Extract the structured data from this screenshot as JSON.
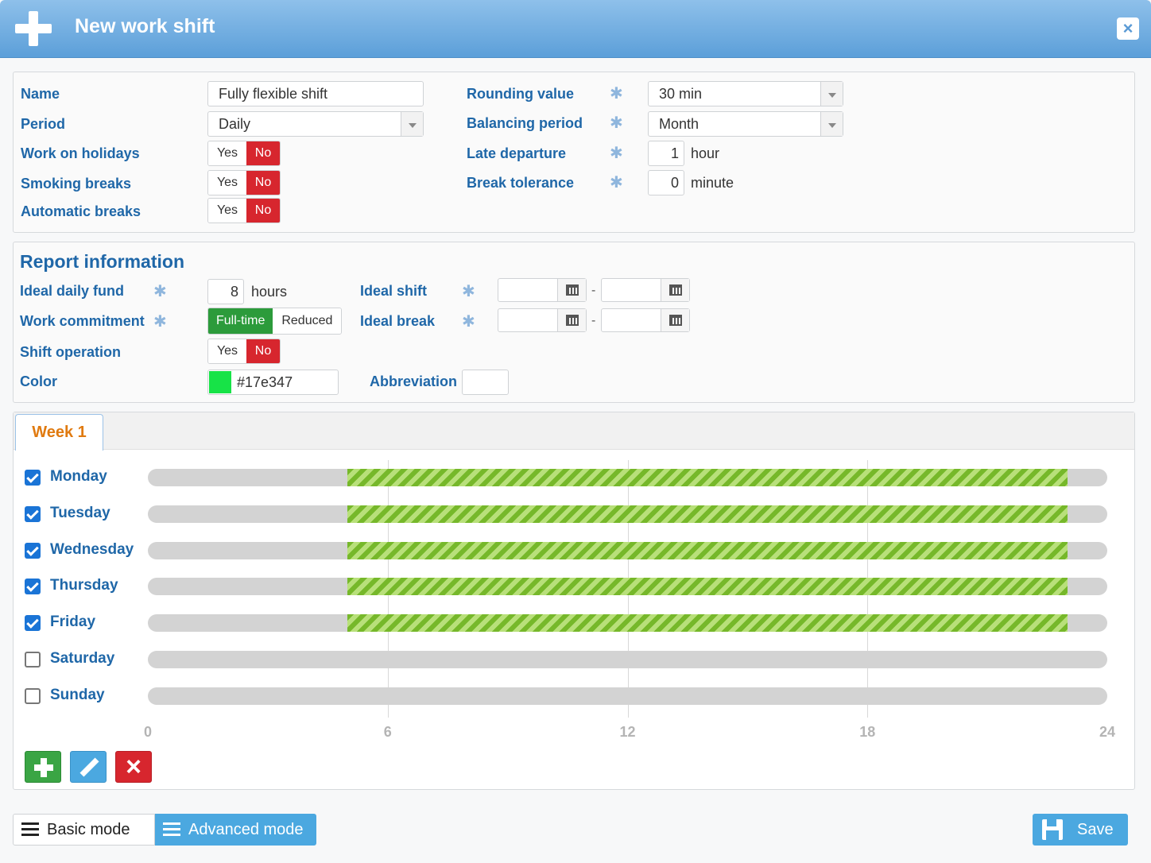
{
  "window": {
    "title": "New work shift",
    "close_label": "×"
  },
  "general": {
    "name_label": "Name",
    "name_value": "Fully flexible shift",
    "period_label": "Period",
    "period_value": "Daily",
    "holidays_label": "Work on holidays",
    "smoking_label": "Smoking breaks",
    "auto_breaks_label": "Automatic breaks",
    "yes": "Yes",
    "no": "No",
    "rounding_label": "Rounding value",
    "rounding_value": "30 min",
    "balancing_label": "Balancing period",
    "balancing_value": "Month",
    "late_label": "Late departure",
    "late_value": "1",
    "late_unit": "hour",
    "break_tol_label": "Break tolerance",
    "break_tol_value": "0",
    "break_tol_unit": "minute",
    "required_mark": "✱"
  },
  "report": {
    "heading": "Report information",
    "daily_fund_label": "Ideal daily fund",
    "daily_fund_value": "8",
    "daily_fund_unit": "hours",
    "commitment_label": "Work commitment",
    "commitment_full": "Full-time",
    "commitment_reduced": "Reduced",
    "shift_op_label": "Shift operation",
    "color_label": "Color",
    "color_value": "#17e347",
    "ideal_shift_label": "Ideal shift",
    "ideal_break_label": "Ideal break",
    "range_sep": "-",
    "abbrev_label": "Abbreviation",
    "abbrev_value": ""
  },
  "schedule": {
    "tab": "Week 1",
    "ticks": [
      "0",
      "6",
      "12",
      "18",
      "24"
    ],
    "days": [
      {
        "name": "Monday",
        "checked": true,
        "start": 5,
        "end": 23
      },
      {
        "name": "Tuesday",
        "checked": true,
        "start": 5,
        "end": 23
      },
      {
        "name": "Wednesday",
        "checked": true,
        "start": 5,
        "end": 23
      },
      {
        "name": "Thursday",
        "checked": true,
        "start": 5,
        "end": 23
      },
      {
        "name": "Friday",
        "checked": true,
        "start": 5,
        "end": 23
      },
      {
        "name": "Saturday",
        "checked": false
      },
      {
        "name": "Sunday",
        "checked": false
      }
    ]
  },
  "footer": {
    "basic_mode": "Basic mode",
    "advanced_mode": "Advanced mode",
    "save": "Save"
  }
}
